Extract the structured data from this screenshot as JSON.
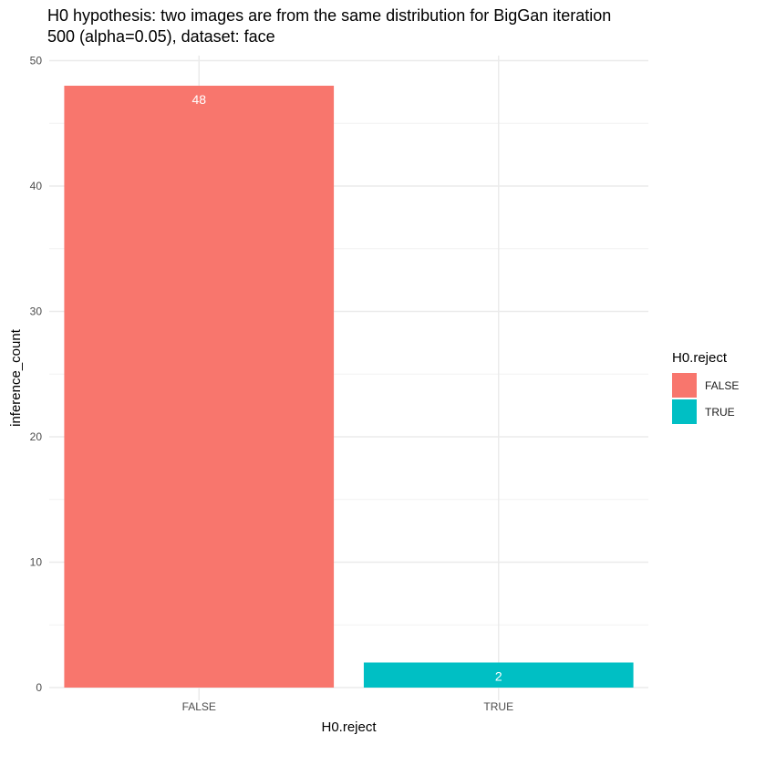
{
  "chart_data": {
    "type": "bar",
    "title": "H0 hypothesis: two images are from the same distribution for BigGan iteration\n 500 (alpha=0.05), dataset: face",
    "xlabel": "H0.reject",
    "ylabel": "inference_count",
    "categories": [
      "FALSE",
      "TRUE"
    ],
    "values": [
      48,
      2
    ],
    "colors": [
      "#F8766D",
      "#00BFC4"
    ],
    "bar_labels": [
      "48",
      "2"
    ],
    "ylim": [
      0,
      50
    ],
    "yticks": [
      0,
      10,
      20,
      30,
      40,
      50
    ],
    "ytick_labels": [
      "0",
      "10",
      "20",
      "30",
      "40",
      "50"
    ],
    "grid": true,
    "legend": {
      "title": "H0.reject",
      "position": "right",
      "entries": [
        {
          "label": "FALSE",
          "color": "#F8766D"
        },
        {
          "label": "TRUE",
          "color": "#00BFC4"
        }
      ]
    }
  }
}
